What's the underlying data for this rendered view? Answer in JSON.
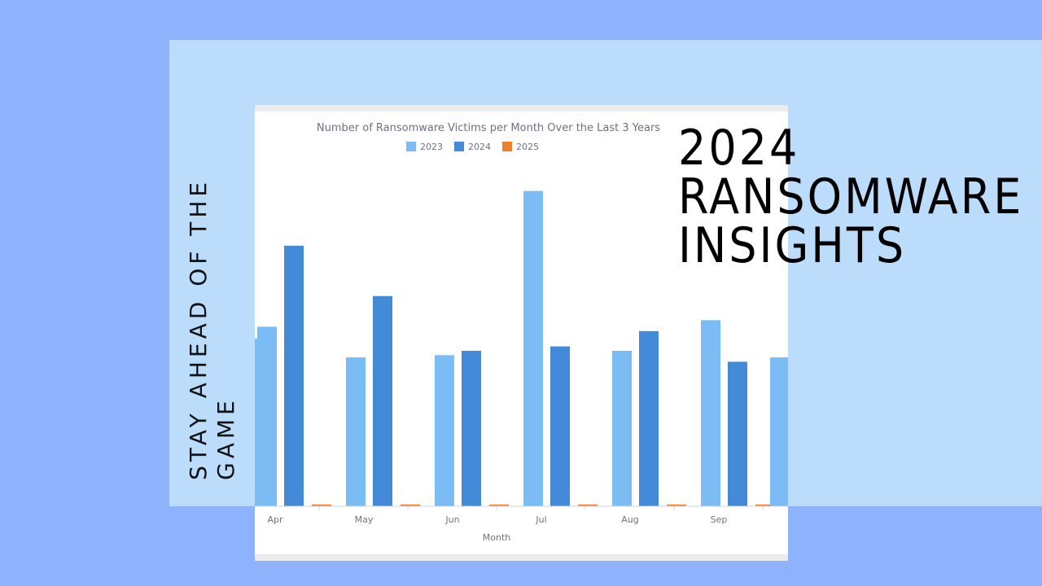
{
  "slide": {
    "tagline": "STAY AHEAD OF THE GAME",
    "headline_lines": [
      "2024",
      "RANSOMWARE",
      "INSIGHTS"
    ]
  },
  "colors": {
    "background": "#8fb2fd",
    "panel": "#bcdcfc",
    "series_2023": "#7bbcf5",
    "series_2024": "#438bd9",
    "series_2025": "#f07f2e"
  },
  "chart_data": {
    "type": "bar",
    "title": "Number of Ransomware Victims per Month Over the Last 3 Years",
    "xlabel": "Month",
    "ylabel": "",
    "categories": [
      "Apr",
      "May",
      "Jun",
      "Jul",
      "Aug",
      "Sep"
    ],
    "series": [
      {
        "name": "2023",
        "values": [
          410,
          340,
          345,
          720,
          355,
          425
        ]
      },
      {
        "name": "2024",
        "values": [
          595,
          480,
          355,
          365,
          400,
          330
        ]
      },
      {
        "name": "2025",
        "values": [
          4,
          4,
          4,
          4,
          4,
          4
        ]
      }
    ],
    "legend": "top-center",
    "grid": false
  }
}
